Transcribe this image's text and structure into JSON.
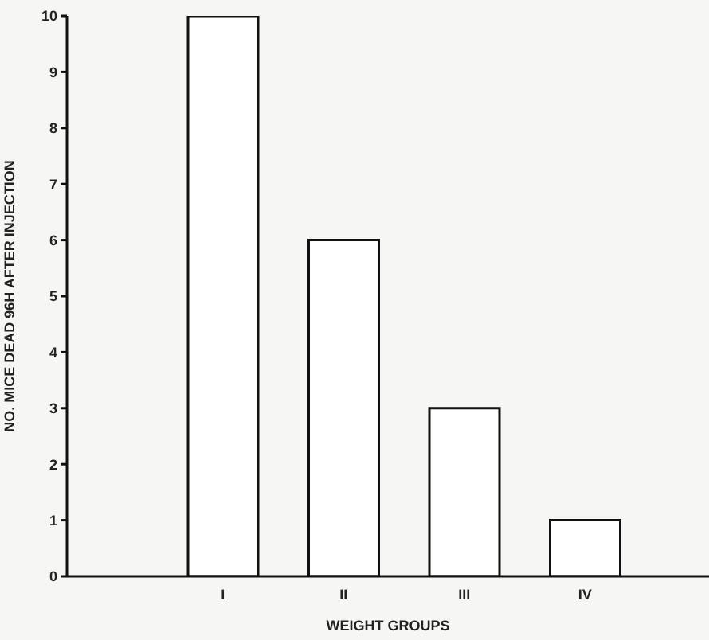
{
  "chart_data": {
    "type": "bar",
    "xlabel": "WEIGHT GROUPS",
    "ylabel": "NO. MICE DEAD 96H AFTER INJECTION",
    "categories": [
      "I",
      "II",
      "III",
      "IV"
    ],
    "values": [
      10,
      6,
      3,
      1
    ],
    "color": "#ffffff",
    "ylim": [
      0,
      10
    ],
    "yticks": [
      0,
      1,
      2,
      3,
      4,
      5,
      6,
      7,
      8,
      9,
      10
    ],
    "grid": false,
    "legend": false
  }
}
